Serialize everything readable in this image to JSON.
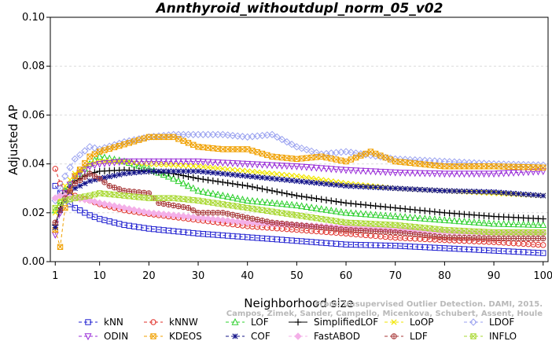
{
  "chart_data": {
    "type": "line",
    "title": "Annthyroid_withoutdupl_norm_05_v02",
    "xlabel": "Neighborhood size",
    "ylabel": "Adjusted AP",
    "xlim": [
      0,
      101
    ],
    "ylim": [
      0,
      0.1
    ],
    "xticks": [
      1,
      10,
      20,
      30,
      40,
      50,
      60,
      70,
      80,
      90,
      100
    ],
    "yticks": [
      0.0,
      0.02,
      0.04,
      0.06,
      0.08,
      0.1
    ],
    "ytick_labels": [
      "0.00",
      "0.02",
      "0.04",
      "0.06",
      "0.08",
      "0.10"
    ],
    "legend_position": "bottom",
    "watermark": [
      "From: Unsupervised Outlier Detection. DAMI, 2015.",
      "Campos, Zimek, Sander, Campello, Micenkova, Schubert, Assent, Houle"
    ],
    "series": [
      {
        "name": "kNN",
        "color": "#1f1fd0",
        "marker": "square",
        "style": "dashed",
        "points": [
          [
            1,
            0.031
          ],
          [
            2,
            0.028
          ],
          [
            3,
            0.025
          ],
          [
            5,
            0.022
          ],
          [
            8,
            0.019
          ],
          [
            10,
            0.0175
          ],
          [
            15,
            0.015
          ],
          [
            20,
            0.0135
          ],
          [
            30,
            0.0115
          ],
          [
            40,
            0.01
          ],
          [
            50,
            0.0085
          ],
          [
            60,
            0.007
          ],
          [
            70,
            0.0065
          ],
          [
            80,
            0.0055
          ],
          [
            90,
            0.0045
          ],
          [
            100,
            0.0035
          ]
        ]
      },
      {
        "name": "kNNW",
        "color": "#e0302a",
        "marker": "circle",
        "style": "dashed",
        "points": [
          [
            1,
            0.038
          ],
          [
            2,
            0.032
          ],
          [
            3,
            0.029
          ],
          [
            5,
            0.027
          ],
          [
            8,
            0.025
          ],
          [
            10,
            0.0235
          ],
          [
            15,
            0.021
          ],
          [
            20,
            0.0195
          ],
          [
            30,
            0.017
          ],
          [
            40,
            0.0145
          ],
          [
            50,
            0.013
          ],
          [
            60,
            0.0115
          ],
          [
            70,
            0.0098
          ],
          [
            80,
            0.0088
          ],
          [
            90,
            0.008
          ],
          [
            100,
            0.0068
          ]
        ]
      },
      {
        "name": "LOF",
        "color": "#2ed02e",
        "marker": "triangle",
        "style": "dashed",
        "points": [
          [
            1,
            0.021
          ],
          [
            2,
            0.025
          ],
          [
            3,
            0.029
          ],
          [
            5,
            0.034
          ],
          [
            8,
            0.04
          ],
          [
            10,
            0.043
          ],
          [
            15,
            0.041
          ],
          [
            20,
            0.038
          ],
          [
            25,
            0.034
          ],
          [
            30,
            0.029
          ],
          [
            40,
            0.025
          ],
          [
            50,
            0.023
          ],
          [
            60,
            0.02
          ],
          [
            70,
            0.0185
          ],
          [
            80,
            0.017
          ],
          [
            90,
            0.0155
          ],
          [
            100,
            0.015
          ]
        ]
      },
      {
        "name": "SimplifiedLOF",
        "color": "#000000",
        "marker": "plus",
        "style": "solid",
        "points": [
          [
            1,
            0.015
          ],
          [
            2,
            0.022
          ],
          [
            3,
            0.028
          ],
          [
            5,
            0.033
          ],
          [
            8,
            0.036
          ],
          [
            10,
            0.037
          ],
          [
            15,
            0.0375
          ],
          [
            20,
            0.037
          ],
          [
            25,
            0.036
          ],
          [
            30,
            0.034
          ],
          [
            40,
            0.031
          ],
          [
            50,
            0.027
          ],
          [
            60,
            0.024
          ],
          [
            70,
            0.022
          ],
          [
            80,
            0.02
          ],
          [
            90,
            0.0185
          ],
          [
            100,
            0.0175
          ]
        ]
      },
      {
        "name": "LoOP",
        "color": "#f2e600",
        "marker": "x",
        "style": "dashed",
        "points": [
          [
            1,
            0.02
          ],
          [
            2,
            0.026
          ],
          [
            3,
            0.031
          ],
          [
            5,
            0.036
          ],
          [
            8,
            0.04
          ],
          [
            10,
            0.041
          ],
          [
            15,
            0.041
          ],
          [
            20,
            0.04
          ],
          [
            30,
            0.039
          ],
          [
            40,
            0.037
          ],
          [
            50,
            0.035
          ],
          [
            60,
            0.032
          ],
          [
            70,
            0.03
          ],
          [
            80,
            0.029
          ],
          [
            90,
            0.028
          ],
          [
            100,
            0.027
          ]
        ]
      },
      {
        "name": "LDOF",
        "color": "#9aa2f0",
        "marker": "diamond",
        "style": "dashed",
        "points": [
          [
            1,
            0.025
          ],
          [
            2,
            0.03
          ],
          [
            3,
            0.035
          ],
          [
            5,
            0.042
          ],
          [
            8,
            0.047
          ],
          [
            10,
            0.046
          ],
          [
            15,
            0.049
          ],
          [
            20,
            0.051
          ],
          [
            25,
            0.052
          ],
          [
            30,
            0.052
          ],
          [
            35,
            0.052
          ],
          [
            40,
            0.051
          ],
          [
            45,
            0.052
          ],
          [
            50,
            0.047
          ],
          [
            55,
            0.044
          ],
          [
            60,
            0.045
          ],
          [
            70,
            0.042
          ],
          [
            80,
            0.041
          ],
          [
            90,
            0.04
          ],
          [
            100,
            0.0395
          ]
        ]
      },
      {
        "name": "ODIN",
        "color": "#9a2ed8",
        "marker": "triangle-down",
        "style": "dashed",
        "points": [
          [
            1,
            0.011
          ],
          [
            2,
            0.02
          ],
          [
            3,
            0.028
          ],
          [
            5,
            0.035
          ],
          [
            8,
            0.039
          ],
          [
            10,
            0.04
          ],
          [
            15,
            0.041
          ],
          [
            20,
            0.041
          ],
          [
            30,
            0.041
          ],
          [
            40,
            0.04
          ],
          [
            50,
            0.039
          ],
          [
            60,
            0.0375
          ],
          [
            70,
            0.0365
          ],
          [
            80,
            0.036
          ],
          [
            90,
            0.036
          ],
          [
            100,
            0.037
          ]
        ]
      },
      {
        "name": "KDEOS",
        "color": "#f0a000",
        "marker": "square-x",
        "style": "dashed",
        "points": [
          [
            1,
            0.013
          ],
          [
            2,
            0.006
          ],
          [
            3,
            0.022
          ],
          [
            5,
            0.035
          ],
          [
            8,
            0.043
          ],
          [
            10,
            0.045
          ],
          [
            15,
            0.048
          ],
          [
            20,
            0.051
          ],
          [
            25,
            0.051
          ],
          [
            30,
            0.047
          ],
          [
            35,
            0.046
          ],
          [
            40,
            0.046
          ],
          [
            45,
            0.043
          ],
          [
            50,
            0.042
          ],
          [
            55,
            0.043
          ],
          [
            60,
            0.041
          ],
          [
            65,
            0.045
          ],
          [
            70,
            0.041
          ],
          [
            80,
            0.039
          ],
          [
            90,
            0.039
          ],
          [
            100,
            0.0385
          ]
        ]
      },
      {
        "name": "COF",
        "color": "#14148a",
        "marker": "star",
        "style": "dashed",
        "points": [
          [
            1,
            0.014
          ],
          [
            2,
            0.021
          ],
          [
            3,
            0.025
          ],
          [
            5,
            0.03
          ],
          [
            8,
            0.033
          ],
          [
            10,
            0.034
          ],
          [
            15,
            0.036
          ],
          [
            20,
            0.037
          ],
          [
            30,
            0.037
          ],
          [
            40,
            0.035
          ],
          [
            50,
            0.033
          ],
          [
            60,
            0.031
          ],
          [
            70,
            0.03
          ],
          [
            80,
            0.029
          ],
          [
            90,
            0.0285
          ],
          [
            100,
            0.027
          ]
        ]
      },
      {
        "name": "FastABOD",
        "color": "#f4b0e8",
        "marker": "diamond-filled",
        "style": "dashed",
        "points": [
          [
            1,
            0.026
          ],
          [
            2,
            0.027
          ],
          [
            3,
            0.027
          ],
          [
            5,
            0.026
          ],
          [
            8,
            0.025
          ],
          [
            10,
            0.024
          ],
          [
            15,
            0.022
          ],
          [
            20,
            0.02
          ],
          [
            30,
            0.018
          ],
          [
            40,
            0.016
          ],
          [
            50,
            0.015
          ],
          [
            60,
            0.014
          ],
          [
            70,
            0.013
          ],
          [
            80,
            0.012
          ],
          [
            90,
            0.0115
          ],
          [
            100,
            0.0115
          ]
        ]
      },
      {
        "name": "LDF",
        "color": "#a83a3a",
        "marker": "circle-plus",
        "style": "dashed",
        "points": [
          [
            1,
            0.016
          ],
          [
            2,
            0.021
          ],
          [
            3,
            0.026
          ],
          [
            5,
            0.032
          ],
          [
            8,
            0.036
          ],
          [
            10,
            0.034
          ],
          [
            12,
            0.031
          ],
          [
            15,
            0.029
          ],
          [
            20,
            0.028
          ],
          [
            22,
            0.024
          ],
          [
            25,
            0.023
          ],
          [
            28,
            0.022
          ],
          [
            30,
            0.02
          ],
          [
            35,
            0.02
          ],
          [
            40,
            0.018
          ],
          [
            45,
            0.016
          ],
          [
            50,
            0.015
          ],
          [
            60,
            0.013
          ],
          [
            70,
            0.012
          ],
          [
            80,
            0.01
          ],
          [
            90,
            0.0095
          ],
          [
            100,
            0.0095
          ]
        ]
      },
      {
        "name": "INFLO",
        "color": "#a8d830",
        "marker": "square-x",
        "style": "dashed",
        "points": [
          [
            1,
            0.022
          ],
          [
            2,
            0.024
          ],
          [
            3,
            0.025
          ],
          [
            5,
            0.026
          ],
          [
            8,
            0.027
          ],
          [
            10,
            0.028
          ],
          [
            15,
            0.027
          ],
          [
            20,
            0.026
          ],
          [
            25,
            0.026
          ],
          [
            30,
            0.025
          ],
          [
            40,
            0.022
          ],
          [
            50,
            0.019
          ],
          [
            60,
            0.016
          ],
          [
            70,
            0.015
          ],
          [
            80,
            0.013
          ],
          [
            90,
            0.012
          ],
          [
            100,
            0.012
          ]
        ]
      }
    ]
  }
}
